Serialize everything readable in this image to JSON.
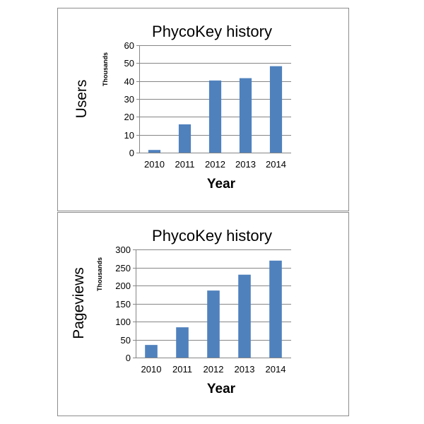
{
  "chart_data": [
    {
      "type": "bar",
      "title": "PhycoKey history",
      "xlabel": "Year",
      "ylabel": "Users",
      "units_label": "Thousands",
      "categories": [
        "2010",
        "2011",
        "2012",
        "2013",
        "2014"
      ],
      "values": [
        1.5,
        15.8,
        40.3,
        41.6,
        48.3
      ],
      "ylim": [
        0,
        60
      ],
      "yticks": [
        0,
        10,
        20,
        30,
        40,
        50,
        60
      ],
      "grid": true,
      "bar_color": "#4f81bd"
    },
    {
      "type": "bar",
      "title": "PhycoKey history",
      "xlabel": "Year",
      "ylabel": "Pageviews",
      "units_label": "Thousands",
      "categories": [
        "2010",
        "2011",
        "2012",
        "2013",
        "2014"
      ],
      "values": [
        35,
        84,
        186,
        230,
        269
      ],
      "ylim": [
        0,
        300
      ],
      "yticks": [
        0,
        50,
        100,
        150,
        200,
        250,
        300
      ],
      "grid": true,
      "bar_color": "#4f81bd"
    }
  ]
}
